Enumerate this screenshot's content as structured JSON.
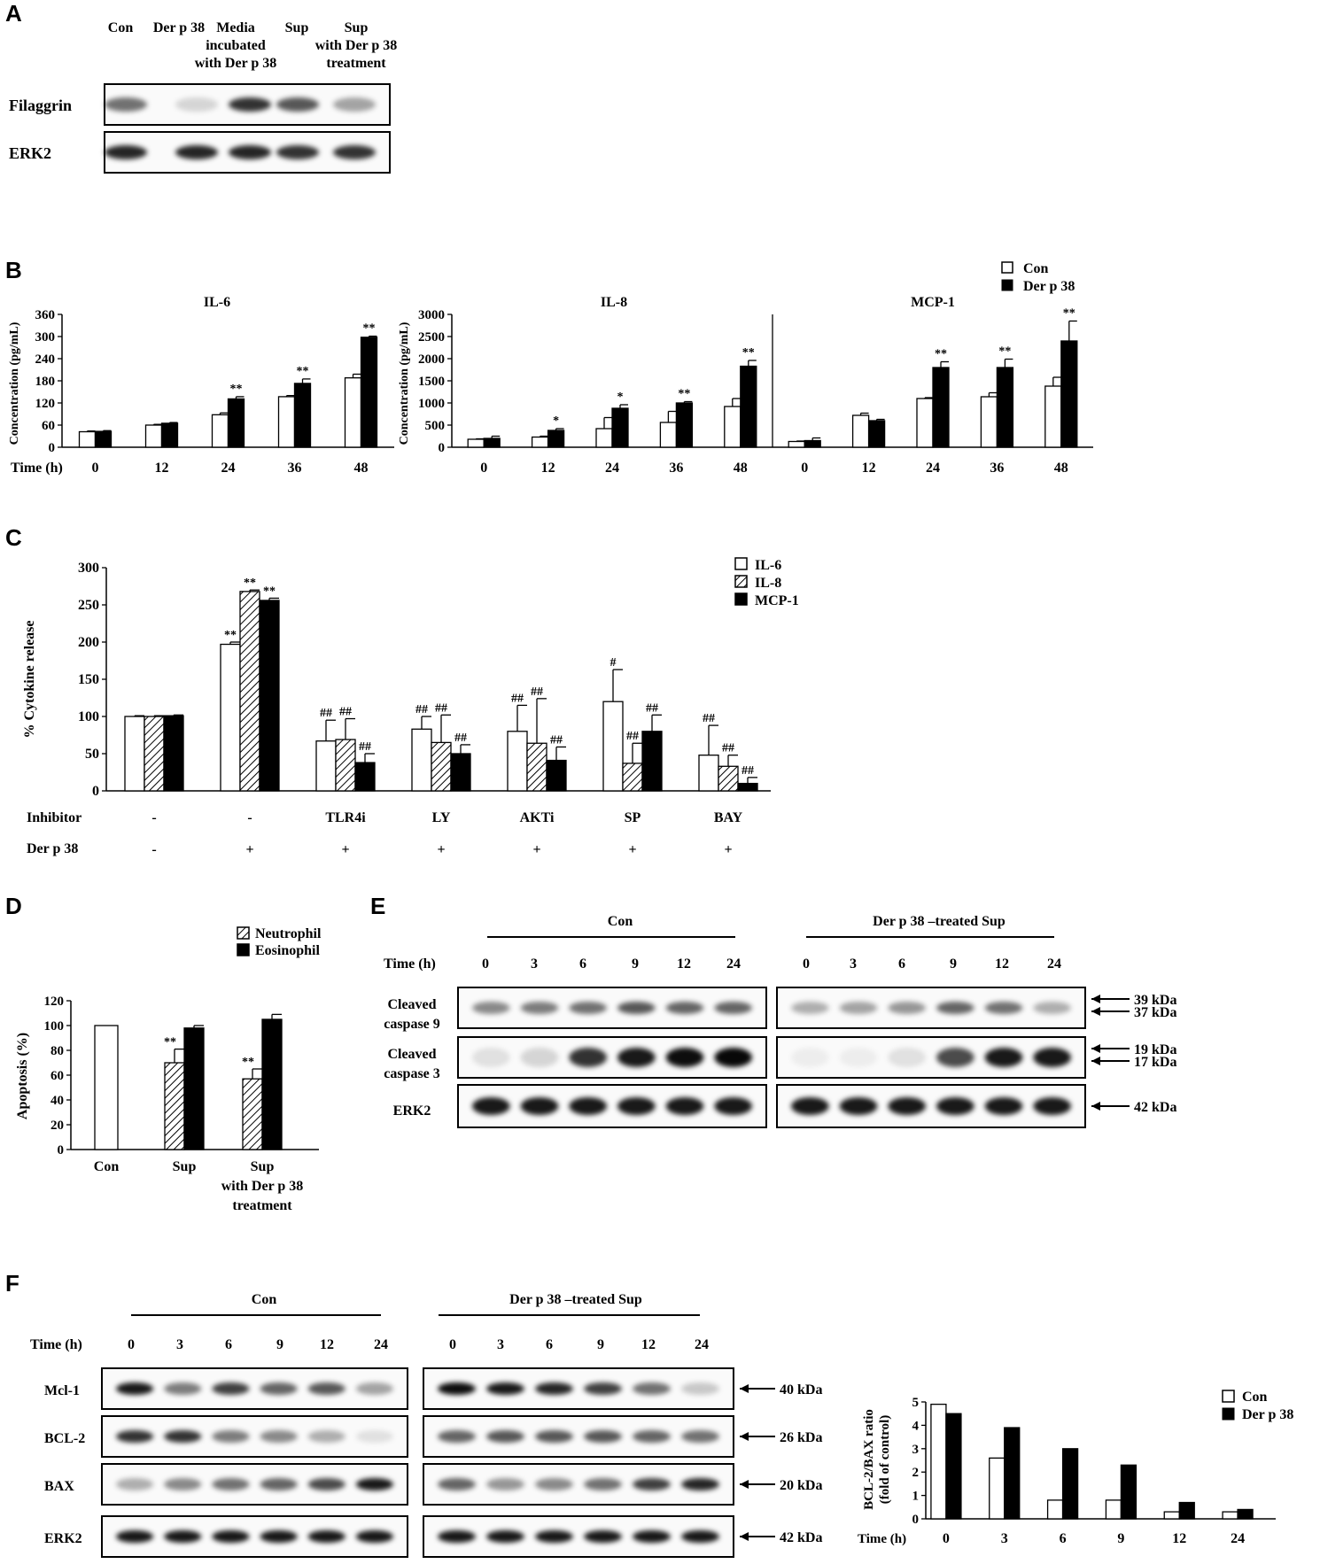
{
  "panels": {
    "a": "A",
    "b": "B",
    "c": "C",
    "d": "D",
    "e": "E",
    "f": "F"
  },
  "panelA": {
    "lanes": [
      "Con",
      "Der p 38",
      "Media incubated with Der p 38",
      "Sup",
      "Sup with Der p 38 treatment"
    ],
    "lane_lines": [
      [
        "Con"
      ],
      [
        "Der p 38"
      ],
      [
        "Media",
        "incubated",
        "with Der p 38"
      ],
      [
        "Sup"
      ],
      [
        "Sup",
        "with Der p 38",
        "treatment"
      ]
    ],
    "rows": [
      "Filaggrin",
      "ERK2"
    ],
    "intensity": {
      "Filaggrin": [
        0.55,
        0.15,
        0.8,
        0.65,
        0.35
      ],
      "ERK2": [
        0.85,
        0.85,
        0.85,
        0.8,
        0.8
      ]
    }
  },
  "legend_con_der": [
    "Con",
    "Der p 38"
  ],
  "time_label": "Time (h)",
  "chart_data": [
    {
      "id": "B-IL6",
      "type": "bar",
      "title": "IL-6",
      "ylabel": "Concentration (pg/mL)",
      "xlabel": "Time (h)",
      "categories": [
        "0",
        "12",
        "24",
        "36",
        "48"
      ],
      "ylim": [
        0,
        360
      ],
      "yticks": [
        0,
        60,
        120,
        180,
        240,
        300,
        360
      ],
      "series": [
        {
          "name": "Con",
          "values": [
            42,
            60,
            88,
            137,
            188
          ],
          "errors": [
            2,
            2,
            5,
            3,
            10
          ]
        },
        {
          "name": "Der p 38",
          "values": [
            43,
            65,
            131,
            173,
            298
          ],
          "errors": [
            2,
            2,
            6,
            12,
            3
          ]
        }
      ],
      "annotations": [
        "",
        "",
        "**",
        "**",
        "**"
      ]
    },
    {
      "id": "B-IL8",
      "type": "bar",
      "title": "IL-8",
      "ylabel": "Concentration (pg/mL)",
      "xlabel": "Time (h)",
      "categories": [
        "0",
        "12",
        "24",
        "36",
        "48"
      ],
      "ylim": [
        0,
        3000
      ],
      "yticks": [
        0,
        500,
        1000,
        1500,
        2000,
        2500,
        3000
      ],
      "series": [
        {
          "name": "Con",
          "values": [
            180,
            230,
            420,
            560,
            920
          ],
          "errors": [
            10,
            20,
            250,
            250,
            180
          ]
        },
        {
          "name": "Der p 38",
          "values": [
            200,
            380,
            880,
            1000,
            1830
          ],
          "errors": [
            50,
            40,
            80,
            30,
            130
          ]
        }
      ],
      "annotations": [
        "",
        "*",
        "*",
        "**",
        "**"
      ]
    },
    {
      "id": "B-MCP1",
      "type": "bar",
      "title": "MCP-1",
      "xlabel": "Time (h)",
      "categories": [
        "0",
        "12",
        "24",
        "36",
        "48"
      ],
      "ylim": [
        0,
        3000
      ],
      "series": [
        {
          "name": "Con",
          "values": [
            130,
            720,
            1100,
            1140,
            1380
          ],
          "errors": [
            10,
            50,
            20,
            90,
            200
          ]
        },
        {
          "name": "Der p 38",
          "values": [
            150,
            600,
            1800,
            1800,
            2400
          ],
          "errors": [
            60,
            30,
            130,
            190,
            450
          ]
        }
      ],
      "annotations": [
        "",
        "",
        "**",
        "**",
        "**"
      ]
    },
    {
      "id": "C",
      "type": "bar",
      "ylabel": "% Cytokine release",
      "ylim": [
        0,
        300
      ],
      "yticks": [
        0,
        50,
        100,
        150,
        200,
        250,
        300
      ],
      "inhibitor_label": "Inhibitor",
      "derp_label": "Der p 38",
      "categories": [
        "-",
        "-",
        "TLR4i",
        "LY",
        "AKTi",
        "SP",
        "BAY"
      ],
      "derp": [
        "-",
        "+",
        "+",
        "+",
        "+",
        "+",
        "+"
      ],
      "series": [
        {
          "name": "IL-6",
          "values": [
            100,
            197,
            67,
            83,
            80,
            120,
            48
          ],
          "errors": [
            1,
            3,
            28,
            17,
            35,
            43,
            40
          ],
          "annotations": [
            "",
            "**",
            "##",
            "##",
            "##",
            "#",
            "##"
          ]
        },
        {
          "name": "IL-8",
          "values": [
            100,
            268,
            69,
            65,
            64,
            37,
            33
          ],
          "errors": [
            1,
            2,
            28,
            37,
            60,
            27,
            15
          ],
          "annotations": [
            "",
            "**",
            "##",
            "##",
            "##",
            "##",
            "##"
          ]
        },
        {
          "name": "MCP-1",
          "values": [
            101,
            256,
            38,
            50,
            41,
            80,
            10
          ],
          "errors": [
            1,
            3,
            12,
            12,
            18,
            22,
            8
          ],
          "annotations": [
            "",
            "**",
            "##",
            "##",
            "##",
            "##",
            "##"
          ]
        }
      ]
    },
    {
      "id": "D",
      "type": "bar",
      "ylabel": "Apoptosis (%)",
      "ylim": [
        0,
        120
      ],
      "yticks": [
        0,
        20,
        40,
        60,
        80,
        100,
        120
      ],
      "categories": [
        "Con",
        "Sup",
        "Sup with Der p 38 treatment"
      ],
      "category_lines": [
        [
          "Con"
        ],
        [
          "Sup"
        ],
        [
          "Sup",
          "with Der p 38",
          "treatment"
        ]
      ],
      "control_value": 100,
      "series": [
        {
          "name": "Neutrophil",
          "values": [
            null,
            70,
            57
          ],
          "errors": [
            0,
            11,
            8
          ],
          "annotations": [
            "",
            "**",
            "**"
          ]
        },
        {
          "name": "Eosinophil",
          "values": [
            null,
            98,
            105
          ],
          "errors": [
            0,
            2,
            4
          ],
          "annotations": [
            "",
            "",
            ""
          ]
        }
      ]
    },
    {
      "id": "F-ratio",
      "type": "bar",
      "ylabel": "BCL-2/BAX ratio (fold of control)",
      "ylabel_lines": [
        "BCL-2/BAX ratio",
        "(fold of control)"
      ],
      "xlabel": "Time (h)",
      "categories": [
        "0",
        "3",
        "6",
        "9",
        "12",
        "24"
      ],
      "ylim": [
        0,
        5
      ],
      "yticks": [
        0,
        1,
        2,
        3,
        4,
        5
      ],
      "series": [
        {
          "name": "Con",
          "values": [
            4.9,
            2.6,
            0.8,
            0.8,
            0.3,
            0.3
          ]
        },
        {
          "name": "Der p 38",
          "values": [
            4.5,
            3.9,
            3.0,
            2.3,
            0.7,
            0.4
          ]
        }
      ]
    }
  ],
  "panelC_legend": [
    "IL-6",
    "IL-8",
    "MCP-1"
  ],
  "panelD_legend": [
    "Neutrophil",
    "Eosinophil"
  ],
  "panelE": {
    "groups": [
      "Con",
      "Der p 38 –treated Sup"
    ],
    "times": [
      "0",
      "3",
      "6",
      "9",
      "12",
      "24"
    ],
    "rows": [
      {
        "label_lines": [
          "Cleaved",
          "caspase 9"
        ],
        "kda": [
          "39 kDa",
          "37 kDa"
        ],
        "con": [
          0.45,
          0.5,
          0.55,
          0.65,
          0.6,
          0.6
        ],
        "sup": [
          0.3,
          0.35,
          0.4,
          0.6,
          0.55,
          0.3
        ]
      },
      {
        "label_lines": [
          "Cleaved",
          "caspase 3"
        ],
        "kda": [
          "19 kDa",
          "17 kDa"
        ],
        "con": [
          0.1,
          0.15,
          0.8,
          0.9,
          0.95,
          0.97
        ],
        "sup": [
          0.05,
          0.05,
          0.1,
          0.7,
          0.9,
          0.9
        ]
      },
      {
        "label_lines": [
          "ERK2"
        ],
        "kda": [
          "42 kDa"
        ],
        "con": [
          0.9,
          0.9,
          0.9,
          0.9,
          0.9,
          0.9
        ],
        "sup": [
          0.9,
          0.9,
          0.9,
          0.9,
          0.9,
          0.9
        ]
      }
    ]
  },
  "panelF": {
    "groups": [
      "Con",
      "Der p 38 –treated Sup"
    ],
    "times": [
      "0",
      "3",
      "6",
      "9",
      "12",
      "24"
    ],
    "rows": [
      {
        "label": "Mcl-1",
        "kda": "40 kDa",
        "con": [
          0.9,
          0.5,
          0.75,
          0.6,
          0.65,
          0.35
        ],
        "sup": [
          0.95,
          0.9,
          0.85,
          0.75,
          0.55,
          0.2
        ]
      },
      {
        "label": "BCL-2",
        "kda": "26 kDa",
        "con": [
          0.8,
          0.8,
          0.5,
          0.45,
          0.3,
          0.1
        ],
        "sup": [
          0.6,
          0.65,
          0.65,
          0.65,
          0.6,
          0.55
        ]
      },
      {
        "label": "BAX",
        "kda": "20 kDa",
        "con": [
          0.3,
          0.45,
          0.55,
          0.6,
          0.7,
          0.9
        ],
        "sup": [
          0.6,
          0.4,
          0.45,
          0.55,
          0.75,
          0.85
        ]
      },
      {
        "label": "ERK2",
        "kda": "42 kDa",
        "con": [
          0.9,
          0.9,
          0.9,
          0.9,
          0.9,
          0.9
        ],
        "sup": [
          0.9,
          0.9,
          0.9,
          0.9,
          0.9,
          0.9
        ]
      }
    ]
  }
}
